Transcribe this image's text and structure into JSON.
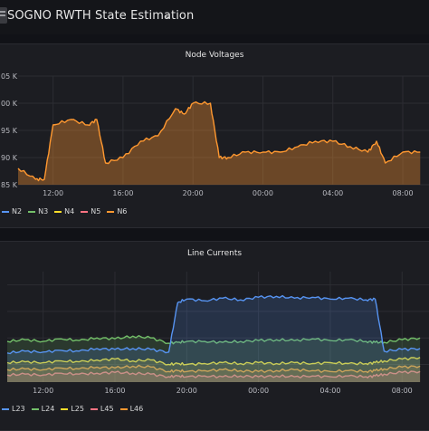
{
  "header": {
    "title": "SOGNO RWTH State Estimation",
    "caret": "⌄"
  },
  "colors": {
    "background": "#111217",
    "panel": "#1c1d22",
    "grid": "#2c2d33"
  },
  "panels": [
    {
      "title": "Node Voltages",
      "y_ticks": [
        "05 K",
        "00 K",
        "95 K",
        "90 K",
        "85 K"
      ],
      "x_ticks": [
        "12:00",
        "16:00",
        "20:00",
        "00:00",
        "04:00",
        "08:00"
      ],
      "legend": [
        {
          "label": "N2",
          "color": "#5794f2"
        },
        {
          "label": "N3",
          "color": "#73bf69"
        },
        {
          "label": "N4",
          "color": "#fade2a"
        },
        {
          "label": "N5",
          "color": "#ff7383"
        },
        {
          "label": "N6",
          "color": "#ff9830"
        }
      ]
    },
    {
      "title": "Line Currents",
      "x_ticks": [
        "12:00",
        "16:00",
        "20:00",
        "00:00",
        "04:00",
        "08:00"
      ],
      "legend": [
        {
          "label": "L23",
          "color": "#5794f2"
        },
        {
          "label": "L24",
          "color": "#73bf69"
        },
        {
          "label": "L25",
          "color": "#fade2a"
        },
        {
          "label": "L45",
          "color": "#ff7383"
        },
        {
          "label": "L46",
          "color": "#ff9830"
        }
      ]
    }
  ],
  "chart_data": [
    {
      "type": "area",
      "title": "Node Voltages",
      "x": [
        "10:00",
        "11:00",
        "11:30",
        "12:00",
        "13:00",
        "14:00",
        "14:30",
        "15:00",
        "16:00",
        "17:00",
        "18:00",
        "19:00",
        "19:30",
        "20:00",
        "21:00",
        "21:30",
        "22:00",
        "23:00",
        "00:00",
        "01:00",
        "02:00",
        "03:00",
        "04:00",
        "05:00",
        "06:00",
        "06:30",
        "07:00",
        "08:00",
        "09:00"
      ],
      "series": [
        {
          "name": "N6",
          "values": [
            188,
            186,
            186,
            196,
            197,
            196,
            197,
            189,
            190,
            193,
            194,
            199,
            198,
            200,
            200,
            190,
            190,
            191,
            191,
            191,
            192,
            193,
            193,
            192,
            191,
            193,
            189,
            191,
            191
          ]
        }
      ]
    },
    {
      "type": "line",
      "title": "Line Currents",
      "x": [
        "10:00",
        "11:00",
        "12:00",
        "13:00",
        "14:00",
        "15:00",
        "16:00",
        "17:00",
        "18:00",
        "19:00",
        "19:30",
        "20:00",
        "21:00",
        "22:00",
        "23:00",
        "00:00",
        "01:00",
        "02:00",
        "03:00",
        "04:00",
        "05:00",
        "06:00",
        "06:30",
        "07:00",
        "08:00",
        "09:00"
      ],
      "series": [
        {
          "name": "L23",
          "values": [
            33,
            35,
            34,
            36,
            35,
            38,
            37,
            38,
            37,
            34,
            90,
            94,
            92,
            95,
            93,
            96,
            97,
            95,
            96,
            94,
            95,
            93,
            94,
            35,
            37,
            38
          ]
        },
        {
          "name": "L24",
          "values": [
            46,
            48,
            46,
            49,
            47,
            50,
            49,
            52,
            50,
            44,
            45,
            46,
            46,
            45,
            46,
            47,
            48,
            47,
            49,
            47,
            48,
            46,
            45,
            45,
            48,
            50
          ]
        },
        {
          "name": "L25",
          "values": [
            22,
            23,
            22,
            24,
            23,
            25,
            26,
            24,
            25,
            20,
            21,
            20,
            21,
            22,
            21,
            22,
            21,
            22,
            21,
            22,
            21,
            21,
            22,
            24,
            26,
            28
          ]
        },
        {
          "name": "L45",
          "values": [
            8,
            9,
            8,
            10,
            9,
            10,
            11,
            10,
            9,
            6,
            7,
            6,
            7,
            6,
            7,
            6,
            7,
            6,
            7,
            6,
            7,
            6,
            7,
            9,
            11,
            12
          ]
        },
        {
          "name": "L46",
          "values": [
            14,
            15,
            14,
            16,
            15,
            17,
            16,
            18,
            17,
            12,
            13,
            12,
            13,
            14,
            13,
            12,
            13,
            14,
            13,
            12,
            13,
            12,
            13,
            15,
            17,
            18
          ]
        }
      ]
    }
  ]
}
